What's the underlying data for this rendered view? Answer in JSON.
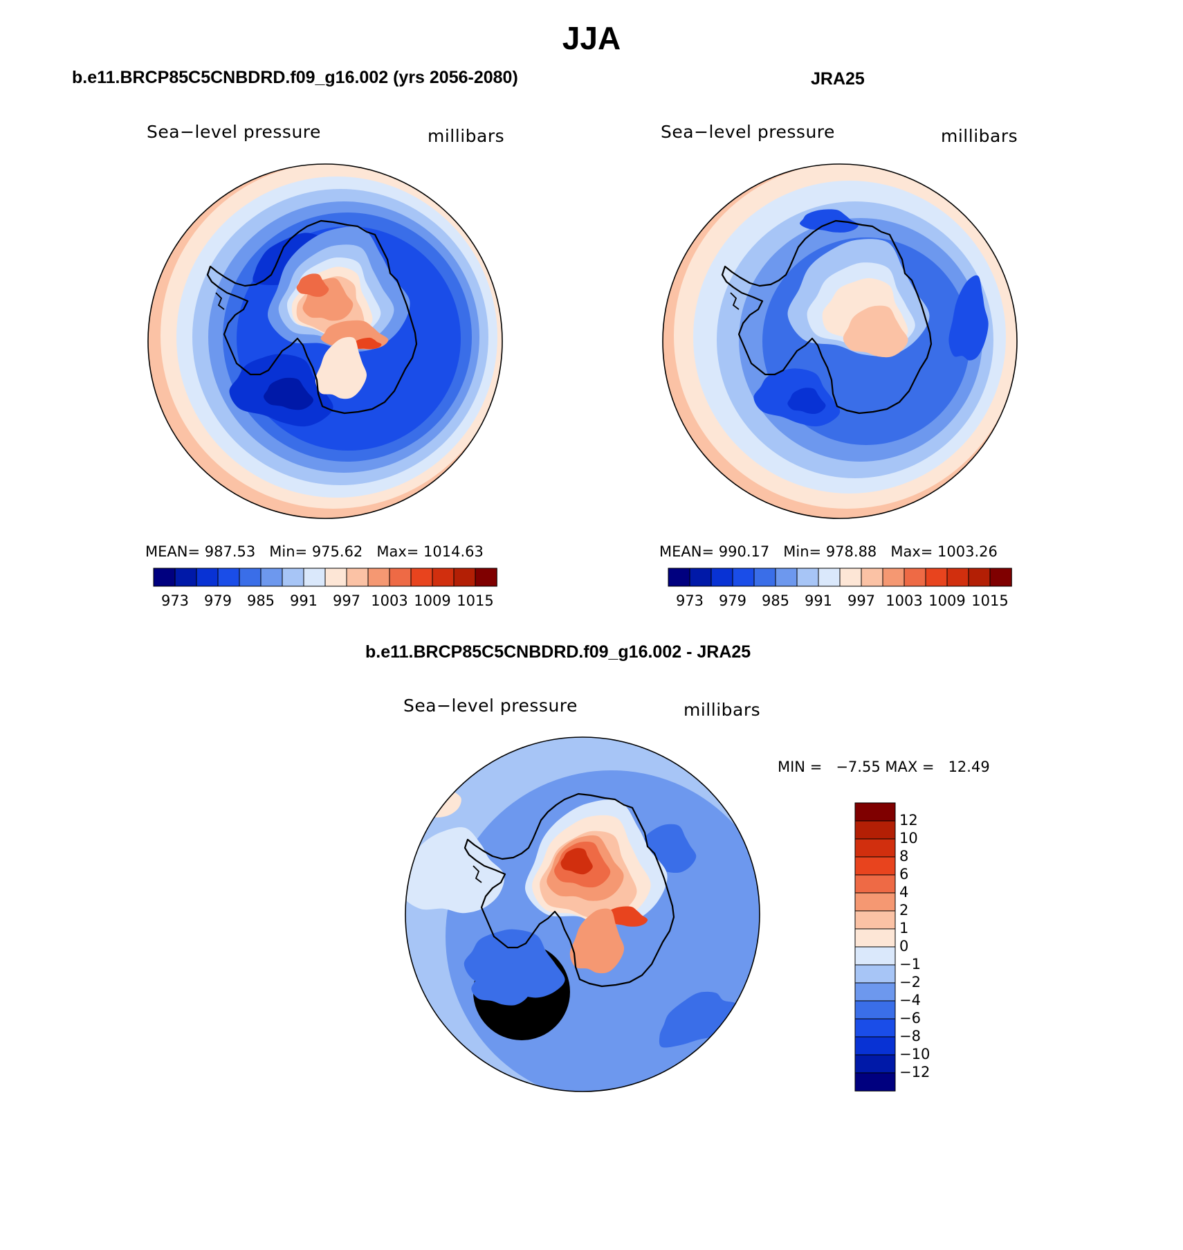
{
  "title": "JJA",
  "panels": [
    {
      "id": "model",
      "case_title": "b.e11.BRCP85C5CNBDRD.f09_g16.002 (yrs 2056-2080)",
      "variable_label": "Sea−level pressure",
      "units_label": "millibars",
      "stats": {
        "mean_label": "MEAN=",
        "mean": "987.53",
        "min_label": "Min=",
        "min": "975.62",
        "max_label": "Max=",
        "max": "1014.63"
      },
      "colorbar_ticks": [
        "973",
        "979",
        "985",
        "991",
        "997",
        "1003",
        "1009",
        "1015"
      ]
    },
    {
      "id": "obs",
      "case_title": "JRA25",
      "variable_label": "Sea−level pressure",
      "units_label": "millibars",
      "stats": {
        "mean_label": "MEAN=",
        "mean": "990.17",
        "min_label": "Min=",
        "min": "978.88",
        "max_label": "Max=",
        "max": "1003.26"
      },
      "colorbar_ticks": [
        "973",
        "979",
        "985",
        "991",
        "997",
        "1003",
        "1009",
        "1015"
      ]
    },
    {
      "id": "diff",
      "case_title": "b.e11.BRCP85C5CNBDRD.f09_g16.002 - JRA25",
      "variable_label": "Sea−level pressure",
      "units_label": "millibars",
      "stats": {
        "min_label": "MIN =",
        "min": "−7.55",
        "max_label": "MAX =",
        "max": "12.49"
      },
      "colorbar_ticks": [
        "12",
        "10",
        "8",
        "6",
        "4",
        "2",
        "1",
        "0",
        "−1",
        "−2",
        "−4",
        "−6",
        "−8",
        "−10",
        "−12"
      ]
    }
  ],
  "colors": {
    "abs_scale": [
      "#00007f",
      "#0019a8",
      "#0832d4",
      "#1a4de8",
      "#3a6ee8",
      "#6d98ee",
      "#a7c5f6",
      "#dae8fb",
      "#fde6d6",
      "#fbc2a5",
      "#f59872",
      "#ee6a45",
      "#e8441e",
      "#d12f0e",
      "#b31f05",
      "#7f0000"
    ],
    "diff_scale": [
      "#7f0000",
      "#b31f05",
      "#d12f0e",
      "#e8441e",
      "#ee6a45",
      "#f59872",
      "#fbc2a5",
      "#fde6d6",
      "#dae8fb",
      "#a7c5f6",
      "#6d98ee",
      "#3a6ee8",
      "#1a4de8",
      "#0832d4",
      "#0019a8",
      "#00007f"
    ]
  }
}
